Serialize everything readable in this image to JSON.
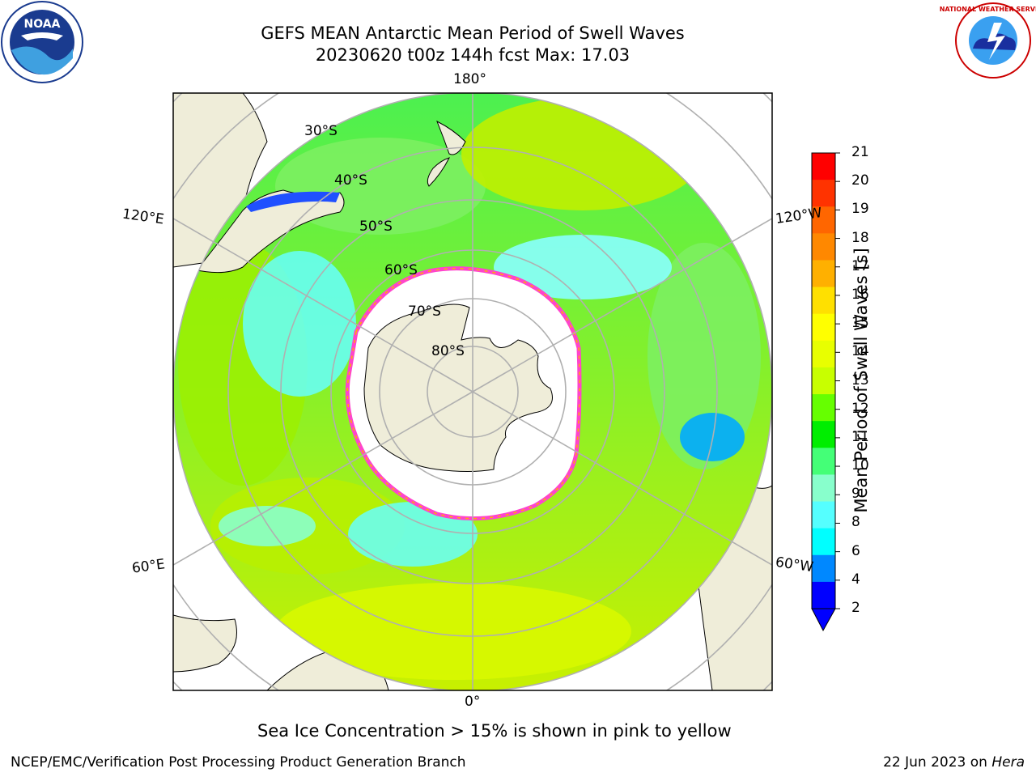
{
  "header": {
    "title_line1": "GEFS MEAN Antarctic Mean Period of Swell Waves",
    "title_line2": "20230620 t00z 144h fcst   Max: 17.03"
  },
  "logos": {
    "left_logo_text": "NOAA",
    "right_logo_text": "NATIONAL WEATHER SERVICE"
  },
  "map": {
    "lon_labels": {
      "top": "180°",
      "bottom": "0°",
      "left_upper": "120°E",
      "left_lower": "60°E",
      "right_upper": "120°W",
      "right_lower": "60°W"
    },
    "lat_labels": [
      "30°S",
      "40°S",
      "50°S",
      "60°S",
      "70°S",
      "80°S"
    ],
    "colors": {
      "land": "#efedd9",
      "ice": "#ffffff",
      "ice_edge": "#ff44cc",
      "grid": "#b0b0b0"
    }
  },
  "colorbar": {
    "title": "Mean Period of Swell Waves [s]",
    "ticks": [
      "21",
      "20",
      "19",
      "18",
      "17",
      "16",
      "15",
      "14",
      "13",
      "12",
      "11",
      "10",
      "9",
      "8",
      "6",
      "4",
      "2"
    ],
    "colors": [
      "#ff0000",
      "#ff3300",
      "#ff6600",
      "#ff8800",
      "#ffb000",
      "#ffe000",
      "#ffff00",
      "#e8ff00",
      "#c8ff00",
      "#66ff00",
      "#00ee00",
      "#44ff77",
      "#88ffcc",
      "#55ffff",
      "#00ffff",
      "#0088ff",
      "#0000ff"
    ]
  },
  "caption": "Sea Ice Concentration > 15% is shown in pink to yellow",
  "footer": {
    "left": "NCEP/EMC/Verification Post Processing Product Generation Branch",
    "right_prefix": "22 Jun 2023 on ",
    "right_host": "Hera"
  }
}
